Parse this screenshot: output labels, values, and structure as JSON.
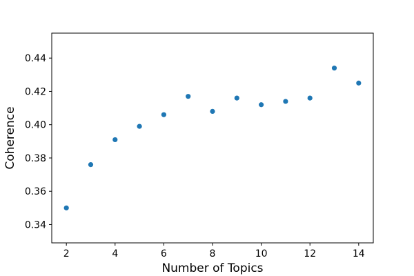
{
  "chart_data": {
    "type": "scatter",
    "title": "",
    "xlabel": "Number of Topics",
    "ylabel": "Coherence",
    "xlim": [
      1.4,
      14.6
    ],
    "ylim": [
      0.329,
      0.455
    ],
    "xticks": [
      2,
      4,
      6,
      8,
      10,
      12,
      14
    ],
    "yticks": [
      0.34,
      0.36,
      0.38,
      0.4,
      0.42,
      0.44
    ],
    "ytick_labels": [
      "0.34",
      "0.36",
      "0.38",
      "0.40",
      "0.42",
      "0.44"
    ],
    "grid": false,
    "marker_color": "#1f77b4",
    "series": [
      {
        "x": [
          2,
          3,
          4,
          5,
          6,
          7,
          8,
          9,
          10,
          11,
          12,
          13,
          14
        ],
        "y": [
          0.35,
          0.376,
          0.391,
          0.399,
          0.406,
          0.417,
          0.408,
          0.416,
          0.412,
          0.414,
          0.416,
          0.434,
          0.425
        ]
      }
    ]
  }
}
